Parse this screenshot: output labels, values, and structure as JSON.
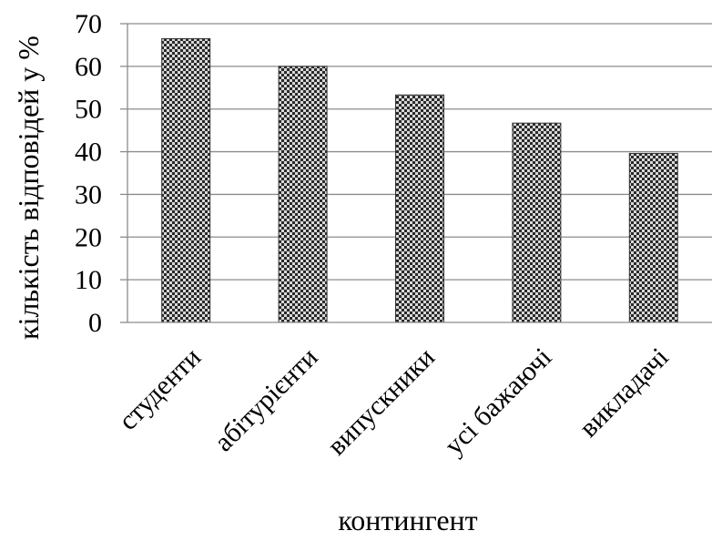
{
  "chart_data": {
    "type": "bar",
    "categories": [
      "студенти",
      "абітурієнти",
      "випускники",
      "усі бажаючі",
      "викладачі"
    ],
    "values": [
      66.5,
      60,
      53.3,
      46.7,
      39.6
    ],
    "ylim": [
      0,
      70
    ],
    "yticks": [
      0,
      10,
      20,
      30,
      40,
      50,
      60,
      70
    ],
    "xlabel": "контингент",
    "ylabel": "кількість відповідей у %",
    "grid": true,
    "legend": "none",
    "bar_fill_pattern": "checkered-crosshatch",
    "colors": {
      "bar_dark": "#2a2a2a",
      "bar_light": "#d8d8d8",
      "grid": "#8c8c8c",
      "axis": "#8c8c8c"
    }
  }
}
